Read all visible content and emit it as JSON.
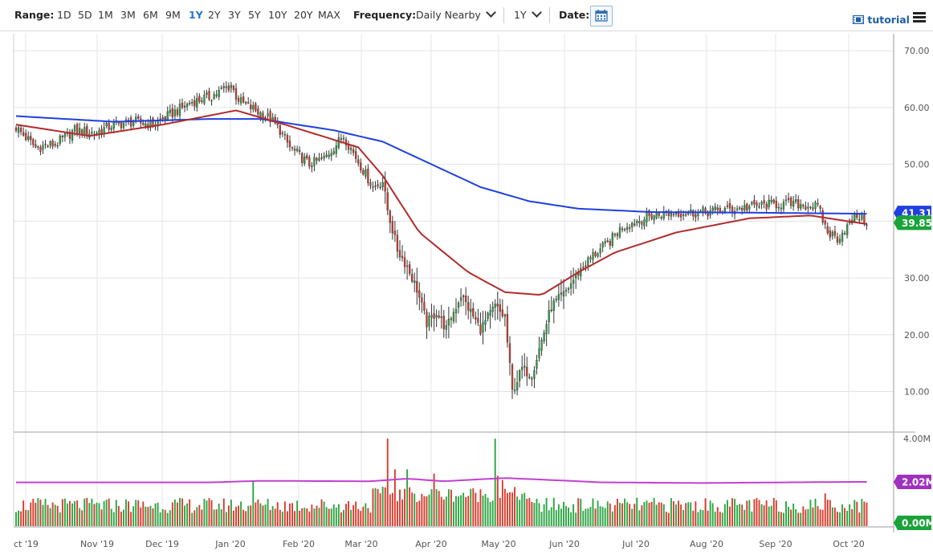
{
  "toolbar": {
    "range_label": "Range:",
    "ranges": [
      "1D",
      "5D",
      "1M",
      "3M",
      "6M",
      "9M",
      "1Y",
      "2Y",
      "3Y",
      "5Y",
      "10Y",
      "20Y",
      "MAX"
    ],
    "active_range": "1Y",
    "frequency_label": "Frequency:",
    "frequency_value": "Daily Nearby",
    "period_value": "1Y",
    "date_label": "Date:",
    "tutorial_label": "tutorial"
  },
  "colors": {
    "up": "#2aa541",
    "down": "#d93a2b",
    "ma_fast": "#b22b2b",
    "ma_slow": "#1f3fe0",
    "volume_avg": "#c040d0",
    "last_price_badge": "#1aa33a",
    "slow_ma_badge": "#1f3fe0",
    "vol_avg_badge": "#a030c0"
  },
  "chart_data": {
    "type": "candlestick",
    "x_labels": [
      "ct '19",
      "Nov '19",
      "Dec '19",
      "Jan '20",
      "Feb '20",
      "Mar '20",
      "Apr '20",
      "May '20",
      "Jun '20",
      "Jul '20",
      "Aug '20",
      "Sep '20",
      "Oct '20"
    ],
    "price_axis": {
      "ticks": [
        "70.00",
        "60.00",
        "50.00",
        "40.00",
        "30.00",
        "20.00",
        "10.00"
      ],
      "ylim": [
        3,
        73
      ]
    },
    "volume_axis": {
      "ticks": [
        "4.00M",
        "2.02M",
        "0.00M"
      ],
      "ylim": [
        0,
        4.3
      ]
    },
    "last_price": "39.85",
    "slow_ma_last": "41.31",
    "volume_avg_last": "2.02M",
    "zero_volume_label": "0.00M",
    "waypoints": [
      [
        0,
        56.5
      ],
      [
        8,
        53
      ],
      [
        16,
        53.5
      ],
      [
        24,
        56
      ],
      [
        32,
        55.5
      ],
      [
        40,
        57
      ],
      [
        48,
        57.5
      ],
      [
        56,
        57
      ],
      [
        64,
        59
      ],
      [
        72,
        61
      ],
      [
        80,
        62
      ],
      [
        88,
        64
      ],
      [
        90,
        62
      ],
      [
        92,
        61
      ],
      [
        100,
        59
      ],
      [
        104,
        58
      ],
      [
        108,
        56
      ],
      [
        112,
        53
      ],
      [
        120,
        50
      ],
      [
        126,
        51
      ],
      [
        130,
        53
      ],
      [
        134,
        55
      ],
      [
        138,
        52
      ],
      [
        142,
        49
      ],
      [
        146,
        46
      ],
      [
        150,
        47
      ],
      [
        152,
        42
      ],
      [
        156,
        35
      ],
      [
        160,
        32
      ],
      [
        164,
        28
      ],
      [
        168,
        22
      ],
      [
        172,
        24
      ],
      [
        176,
        21
      ],
      [
        182,
        27
      ],
      [
        186,
        24
      ],
      [
        190,
        21
      ],
      [
        196,
        25
      ],
      [
        200,
        23
      ],
      [
        203,
        10
      ],
      [
        207,
        14
      ],
      [
        211,
        13
      ],
      [
        215,
        19
      ],
      [
        219,
        25
      ],
      [
        224,
        27
      ],
      [
        230,
        31
      ],
      [
        236,
        34
      ],
      [
        242,
        36
      ],
      [
        248,
        39
      ],
      [
        254,
        40
      ],
      [
        260,
        41
      ],
      [
        270,
        41.5
      ],
      [
        280,
        41.5
      ],
      [
        290,
        42
      ],
      [
        300,
        42.5
      ],
      [
        310,
        43
      ],
      [
        320,
        43
      ],
      [
        328,
        42.5
      ],
      [
        332,
        38
      ],
      [
        336,
        37
      ],
      [
        340,
        39
      ],
      [
        344,
        41
      ],
      [
        348,
        40
      ]
    ],
    "slow_ma_waypoints": [
      [
        0,
        58.5
      ],
      [
        40,
        57.5
      ],
      [
        80,
        58
      ],
      [
        100,
        58
      ],
      [
        130,
        56
      ],
      [
        150,
        54
      ],
      [
        170,
        50
      ],
      [
        190,
        46
      ],
      [
        210,
        43.5
      ],
      [
        230,
        42.2
      ],
      [
        260,
        41.6
      ],
      [
        300,
        41.5
      ],
      [
        348,
        41.3
      ]
    ],
    "fast_ma_waypoints": [
      [
        0,
        57
      ],
      [
        30,
        55
      ],
      [
        60,
        57
      ],
      [
        90,
        59.5
      ],
      [
        110,
        57
      ],
      [
        125,
        55
      ],
      [
        140,
        53
      ],
      [
        150,
        48
      ],
      [
        165,
        38
      ],
      [
        185,
        31
      ],
      [
        200,
        27.5
      ],
      [
        215,
        27
      ],
      [
        230,
        31
      ],
      [
        245,
        34.5
      ],
      [
        270,
        38
      ],
      [
        300,
        40.5
      ],
      [
        325,
        41
      ],
      [
        340,
        40
      ],
      [
        348,
        39.5
      ]
    ],
    "volume_spikes": [
      [
        97,
        2.05
      ],
      [
        152,
        4.0
      ],
      [
        155,
        2.6
      ],
      [
        160,
        2.6
      ],
      [
        171,
        2.4
      ],
      [
        196,
        4.0
      ],
      [
        197,
        2.3
      ],
      [
        199,
        2.1
      ],
      [
        331,
        1.5
      ]
    ],
    "volume_avg_waypoints": [
      [
        0,
        2.0
      ],
      [
        80,
        2.0
      ],
      [
        100,
        2.07
      ],
      [
        145,
        2.05
      ],
      [
        160,
        2.17
      ],
      [
        175,
        2.05
      ],
      [
        200,
        2.2
      ],
      [
        240,
        2.0
      ],
      [
        280,
        1.97
      ],
      [
        340,
        2.02
      ]
    ]
  }
}
